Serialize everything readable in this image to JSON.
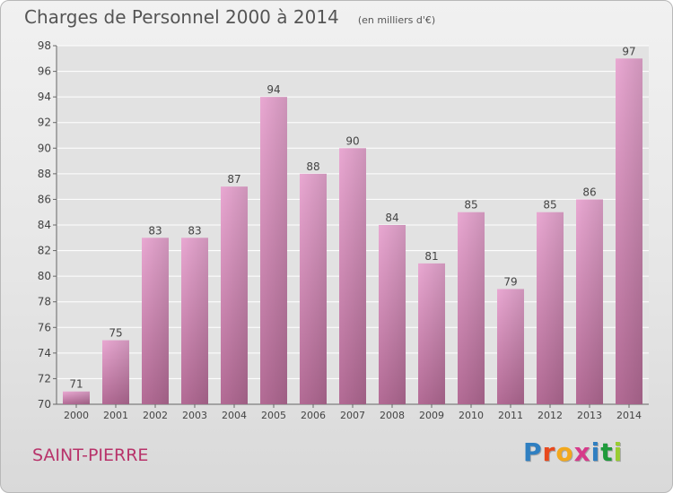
{
  "header": {
    "title": "Charges de Personnel 2000 à 2014",
    "subtitle": "(en milliers d'€)"
  },
  "commune": "SAINT-PIERRE",
  "logo": {
    "text": "Proxiti",
    "letters": [
      "P",
      "r",
      "o",
      "x",
      "i",
      "t",
      "i"
    ],
    "colors": [
      "#2f7fc1",
      "#e8491d",
      "#f2a81d",
      "#d63a8a",
      "#2f7fc1",
      "#1f9a3b",
      "#9acd32"
    ]
  },
  "colors": {
    "bar_top": "#e9a8d2",
    "bar_bottom": "#b36b95",
    "text": "#444444",
    "grid": "#ffffff"
  },
  "chart_data": {
    "type": "bar",
    "title": "Charges de Personnel 2000 à 2014",
    "subtitle": "(en milliers d'€)",
    "categories": [
      "2000",
      "2001",
      "2002",
      "2003",
      "2004",
      "2005",
      "2006",
      "2007",
      "2008",
      "2009",
      "2010",
      "2011",
      "2012",
      "2013",
      "2014"
    ],
    "values": [
      71,
      75,
      83,
      83,
      87,
      94,
      88,
      90,
      84,
      81,
      85,
      79,
      85,
      86,
      97
    ],
    "ylim": [
      70,
      98
    ],
    "yticks": [
      70,
      72,
      74,
      76,
      78,
      80,
      82,
      84,
      86,
      88,
      90,
      92,
      94,
      96,
      98
    ],
    "grid": true,
    "xlabel": "",
    "ylabel": ""
  }
}
